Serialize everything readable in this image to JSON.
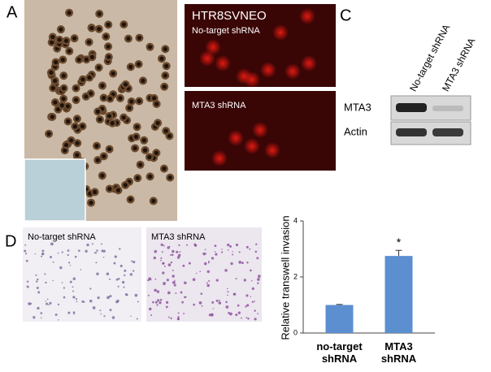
{
  "panels": {
    "a": {
      "label": "A"
    },
    "b": {
      "label": "B",
      "title": "HTR8SVNEO",
      "top_caption": "No-target shRNA",
      "bottom_caption": "MTA3 shRNA"
    },
    "c": {
      "label": "C",
      "columns": [
        "No-target shRNA",
        "MTA3 shRNA"
      ],
      "rows": [
        "MTA3",
        "Actin"
      ]
    },
    "d": {
      "label": "D",
      "left_caption": "No-target shRNA",
      "right_caption": "MTA3 shRNA"
    }
  },
  "chart_data": {
    "type": "bar",
    "y_label": "Relative transwell invasion",
    "categories": [
      "no-target shRNA",
      "MTA3 shRNA"
    ],
    "values": [
      1,
      2.75
    ],
    "errors": [
      0.02,
      0.2
    ],
    "color": "#5b8fd0",
    "ylim": [
      0,
      4
    ],
    "yticks": [
      0,
      2,
      4
    ],
    "annotation": "*"
  }
}
